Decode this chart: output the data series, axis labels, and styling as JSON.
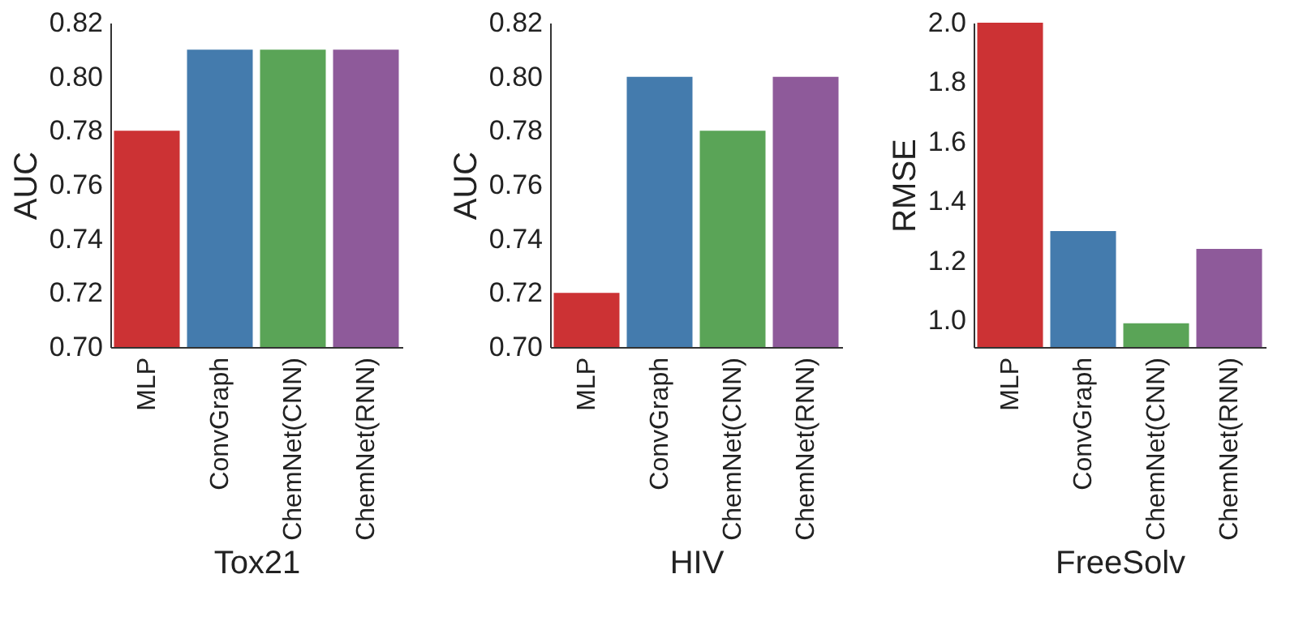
{
  "chart_data": [
    {
      "type": "bar",
      "xlabel": "Tox21",
      "ylabel": "AUC",
      "categories": [
        "MLP",
        "ConvGraph",
        "ChemNet(CNN)",
        "ChemNet(RNN)"
      ],
      "values": [
        0.78,
        0.81,
        0.81,
        0.81
      ],
      "colors": [
        "#cc3234",
        "#447bad",
        "#5aa457",
        "#8e5a9a"
      ],
      "ylim": [
        0.7,
        0.82
      ],
      "yticks": [
        {
          "value": 0.7,
          "label": "0.70"
        },
        0.72,
        0.74,
        0.76,
        0.78,
        {
          "value": 0.8,
          "label": "0.80"
        },
        0.82
      ],
      "grid": false
    },
    {
      "type": "bar",
      "xlabel": "HIV",
      "ylabel": "AUC",
      "categories": [
        "MLP",
        "ConvGraph",
        "ChemNet(CNN)",
        "ChemNet(RNN)"
      ],
      "values": [
        0.72,
        0.8,
        0.78,
        0.8
      ],
      "colors": [
        "#cc3234",
        "#447bad",
        "#5aa457",
        "#8e5a9a"
      ],
      "ylim": [
        0.7,
        0.82
      ],
      "yticks": [
        {
          "value": 0.7,
          "label": "0.70"
        },
        0.72,
        0.74,
        0.76,
        0.78,
        {
          "value": 0.8,
          "label": "0.80"
        },
        0.82
      ],
      "grid": false
    },
    {
      "type": "bar",
      "xlabel": "FreeSolv",
      "ylabel": "RMSE",
      "categories": [
        "MLP",
        "ConvGraph",
        "ChemNet(CNN)",
        "ChemNet(RNN)"
      ],
      "values": [
        2.0,
        1.3,
        0.99,
        1.24
      ],
      "colors": [
        "#cc3234",
        "#447bad",
        "#5aa457",
        "#8e5a9a"
      ],
      "ylim": [
        0.91,
        2.0
      ],
      "yticks": [
        {
          "value": 1.0,
          "label": "1.0"
        },
        1.2,
        1.4,
        1.6,
        1.8,
        {
          "value": 2.0,
          "label": "2.0"
        }
      ],
      "grid": false
    }
  ]
}
